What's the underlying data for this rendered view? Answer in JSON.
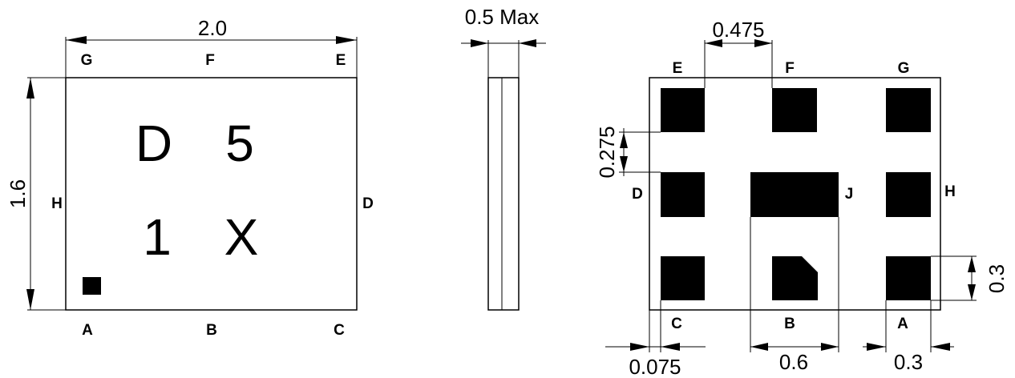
{
  "top_view": {
    "width_dim": "2.0",
    "height_dim": "1.6",
    "pins": {
      "g": "G",
      "f": "F",
      "e": "E",
      "h": "H",
      "d": "D",
      "a": "A",
      "b": "B",
      "c": "C"
    },
    "marking": {
      "r1c1": "D",
      "r1c2": "5",
      "r2c1": "1",
      "r2c2": "X"
    }
  },
  "side_view": {
    "thickness_dim": "0.5 Max"
  },
  "footprint": {
    "pad_pitch_dim": "0.475",
    "pad_gap_dim": "0.275",
    "pad_height_dim": "0.3",
    "edge_offset_dim": "0.075",
    "center_pad_width_dim": "0.6",
    "pad_width_dim": "0.3",
    "pins": {
      "e": "E",
      "f": "F",
      "g": "G",
      "d": "D",
      "j": "J",
      "h": "H",
      "c": "C",
      "b": "B",
      "a": "A"
    }
  }
}
